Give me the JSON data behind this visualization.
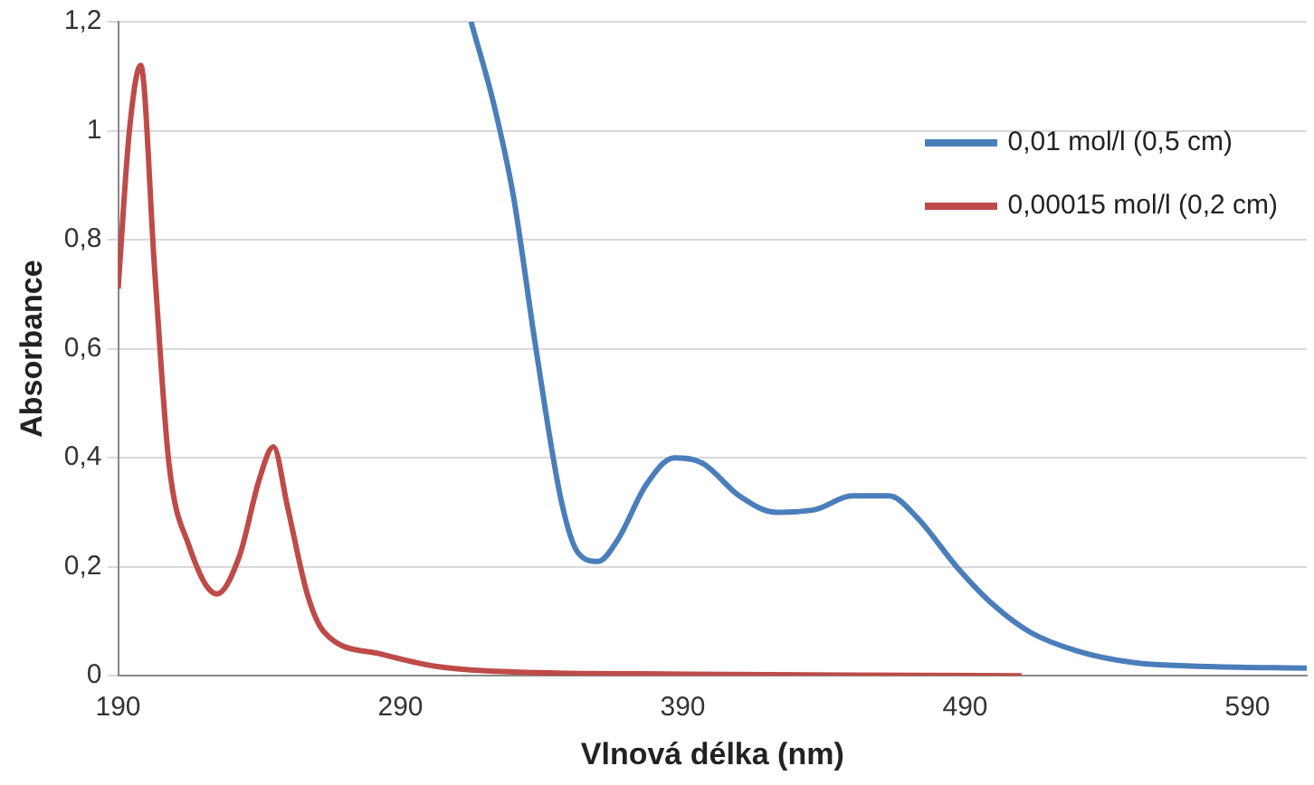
{
  "chart_data": {
    "type": "line",
    "xlabel": "Vlnová délka (nm)",
    "ylabel": "Absorbance",
    "xlim": [
      190,
      611
    ],
    "xticks": [
      190,
      290,
      390,
      490,
      590
    ],
    "ylim": [
      0,
      1.2
    ],
    "yticks": [
      0,
      {
        "value": 0.2,
        "label": "0,2"
      },
      {
        "value": 0.4,
        "label": "0,4"
      },
      {
        "value": 0.6,
        "label": "0,6"
      },
      {
        "value": 0.8,
        "label": "0,8"
      },
      1,
      {
        "value": 1.2,
        "label": "1,2"
      }
    ],
    "grid": "y",
    "legend": "top right",
    "marker": "none",
    "line_style": "solid",
    "series": [
      {
        "name": "0,01 mol/l (0,5 cm)",
        "color": "#4a7ebb",
        "x": [
          315,
          323,
          330,
          338,
          347,
          353,
          360,
          367,
          377,
          387,
          397,
          410,
          423,
          437,
          450,
          463,
          473,
          487,
          500,
          513,
          530,
          550,
          577,
          611
        ],
        "values": [
          1.2,
          1.05,
          0.88,
          0.6,
          0.32,
          0.225,
          0.21,
          0.25,
          0.35,
          0.4,
          0.39,
          0.33,
          0.3,
          0.305,
          0.33,
          0.33,
          0.29,
          0.2,
          0.13,
          0.08,
          0.045,
          0.024,
          0.017,
          0.014
        ]
      },
      {
        "name": "0,00015 mol/l (0,2 cm)",
        "color": "#be4b48",
        "x": [
          190,
          194,
          198,
          203,
          208,
          215,
          225,
          233,
          240,
          245,
          250,
          257,
          263,
          283,
          303,
          330,
          390,
          450,
          510
        ],
        "values": [
          0.71,
          1.0,
          1.12,
          0.74,
          0.39,
          0.24,
          0.15,
          0.22,
          0.36,
          0.42,
          0.31,
          0.15,
          0.08,
          0.04,
          0.017,
          0.007,
          0.003,
          0.001,
          0
        ]
      }
    ]
  }
}
